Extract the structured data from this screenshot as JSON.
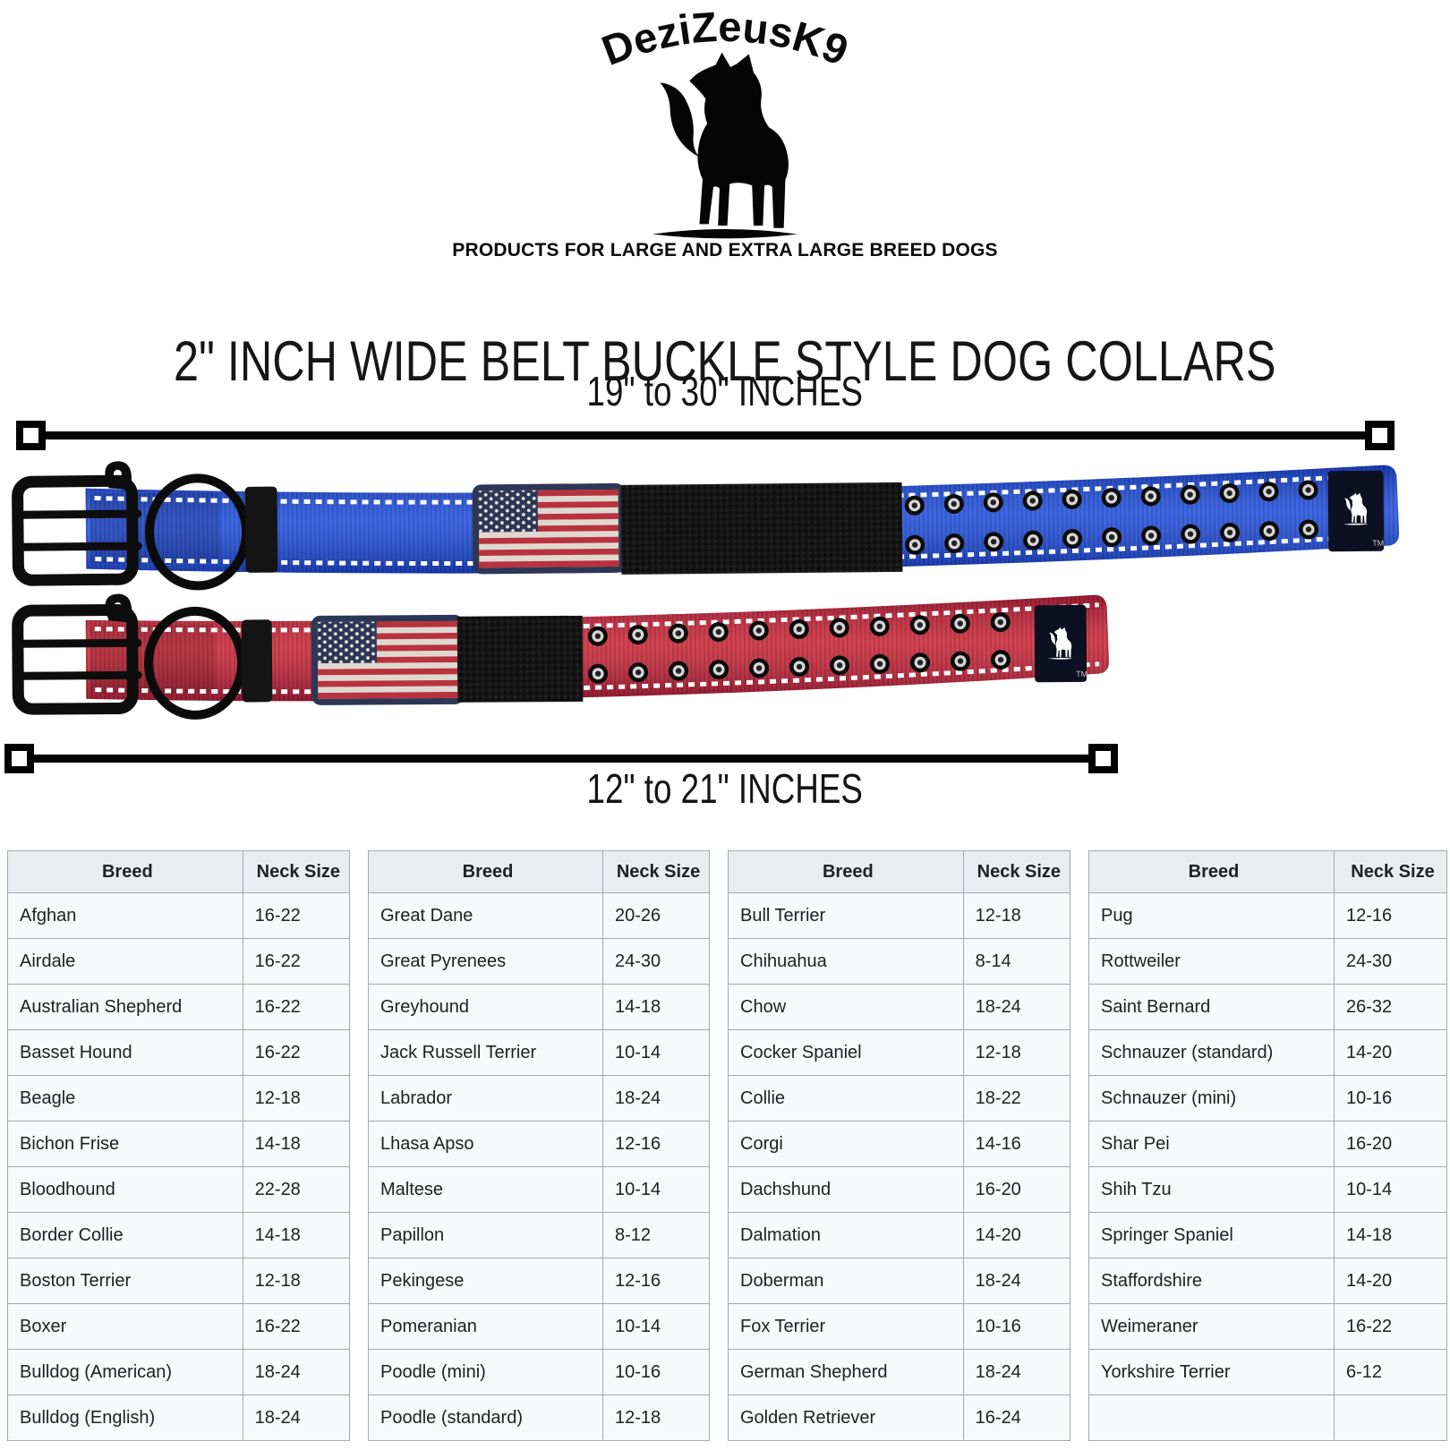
{
  "brand": {
    "name": "DeziZeusK9",
    "tagline": "PRODUCTS FOR LARGE AND EXTRA LARGE BREED DOGS"
  },
  "title": "2\" INCH WIDE BELT BUCKLE STYLE DOG COLLARS",
  "measurements": {
    "top_label": "19\" to 30\" INCHES",
    "bottom_label": "12\" to 21\" INCHES"
  },
  "collars": [
    {
      "name": "blue belt buckle collar",
      "color_hex": "#1f4fe0",
      "size_range": "19\" to 30\" INCHES"
    },
    {
      "name": "red belt buckle collar",
      "color_hex": "#cf2433",
      "size_range": "12\" to 21\" INCHES"
    }
  ],
  "labels": {
    "tm": "TM"
  },
  "colors": {
    "collar_blue": "#1f4fe0",
    "collar_red": "#cf2433",
    "hardware_black": "#0d0d0d",
    "flag_navy": "#2c3756",
    "flag_red": "#b8323e",
    "flag_white": "#ded8d0",
    "table_header_bg": "#eaecf0",
    "table_row_bg": "#f8f9fa",
    "table_border": "#a2a9b1",
    "text": "#202122"
  },
  "tables": [
    {
      "headers": [
        "Breed",
        "Neck Size"
      ],
      "rows": [
        [
          "Afghan",
          "16-22"
        ],
        [
          "Airdale",
          "16-22"
        ],
        [
          "Australian Shepherd",
          "16-22"
        ],
        [
          "Basset Hound",
          "16-22"
        ],
        [
          "Beagle",
          "12-18"
        ],
        [
          "Bichon Frise",
          "14-18"
        ],
        [
          "Bloodhound",
          "22-28"
        ],
        [
          "Border Collie",
          "14-18"
        ],
        [
          "Boston Terrier",
          "12-18"
        ],
        [
          "Boxer",
          "16-22"
        ],
        [
          "Bulldog (American)",
          "18-24"
        ],
        [
          "Bulldog (English)",
          "18-24"
        ]
      ]
    },
    {
      "headers": [
        "Breed",
        "Neck Size"
      ],
      "rows": [
        [
          "Great Dane",
          "20-26"
        ],
        [
          "Great Pyrenees",
          "24-30"
        ],
        [
          "Greyhound",
          "14-18"
        ],
        [
          "Jack Russell Terrier",
          "10-14"
        ],
        [
          "Labrador",
          "18-24"
        ],
        [
          "Lhasa Apso",
          "12-16"
        ],
        [
          "Maltese",
          "10-14"
        ],
        [
          "Papillon",
          "8-12"
        ],
        [
          "Pekingese",
          "12-16"
        ],
        [
          "Pomeranian",
          "10-14"
        ],
        [
          "Poodle (mini)",
          "10-16"
        ],
        [
          "Poodle (standard)",
          "12-18"
        ]
      ]
    },
    {
      "headers": [
        "Breed",
        "Neck Size"
      ],
      "rows": [
        [
          "Bull Terrier",
          "12-18"
        ],
        [
          "Chihuahua",
          "8-14"
        ],
        [
          "Chow",
          "18-24"
        ],
        [
          "Cocker Spaniel",
          "12-18"
        ],
        [
          "Collie",
          "18-22"
        ],
        [
          "Corgi",
          "14-16"
        ],
        [
          "Dachshund",
          "16-20"
        ],
        [
          "Dalmation",
          "14-20"
        ],
        [
          "Doberman",
          "18-24"
        ],
        [
          "Fox Terrier",
          "10-16"
        ],
        [
          "German Shepherd",
          "18-24"
        ],
        [
          "Golden Retriever",
          "16-24"
        ]
      ]
    },
    {
      "headers": [
        "Breed",
        "Neck Size"
      ],
      "rows": [
        [
          "Pug",
          "12-16"
        ],
        [
          "Rottweiler",
          "24-30"
        ],
        [
          "Saint Bernard",
          "26-32"
        ],
        [
          "Schnauzer (standard)",
          "14-20"
        ],
        [
          "Schnauzer (mini)",
          "10-16"
        ],
        [
          "Shar Pei",
          "16-20"
        ],
        [
          "Shih Tzu",
          "10-14"
        ],
        [
          "Springer Spaniel",
          "14-18"
        ],
        [
          "Staffordshire",
          "14-20"
        ],
        [
          "Weimeraner",
          "16-22"
        ],
        [
          "Yorkshire Terrier",
          "6-12"
        ],
        [
          "",
          ""
        ]
      ]
    }
  ]
}
